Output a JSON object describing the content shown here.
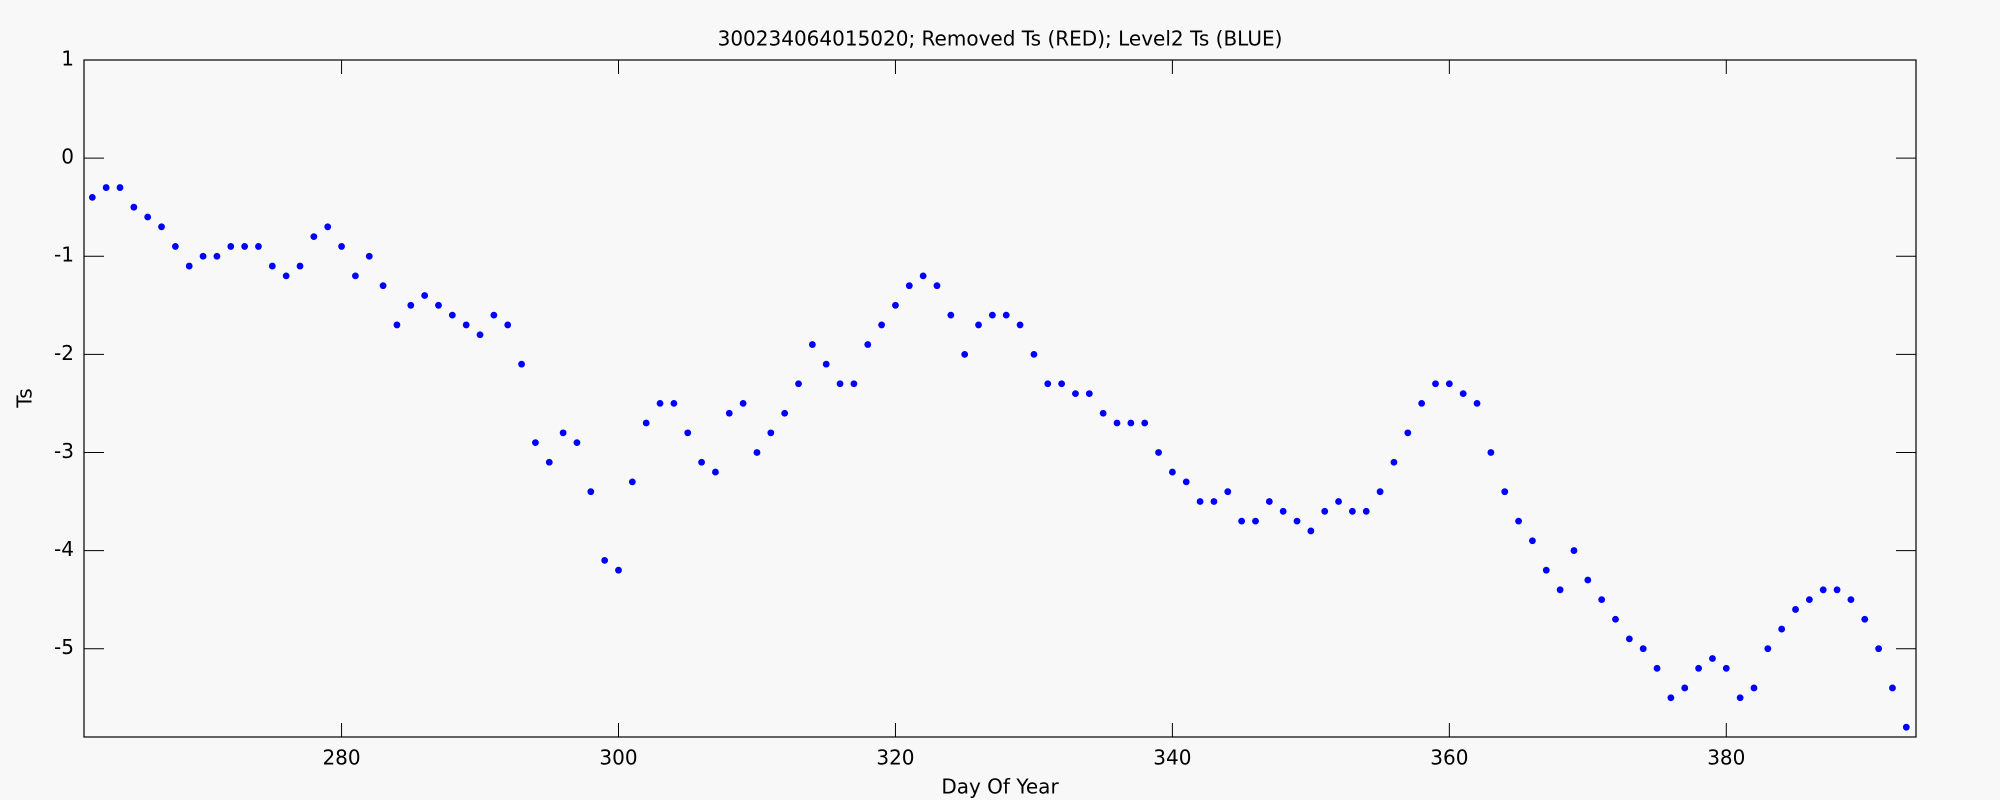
{
  "chart_data": {
    "type": "scatter",
    "title": "300234064015020; Removed Ts (RED); Level2 Ts (BLUE)",
    "x_label": "Day Of Year",
    "y_label": "Ts",
    "xlim": [
      261.4,
      393.7
    ],
    "ylim": [
      -5.9,
      1
    ],
    "xticks": [
      280,
      300,
      320,
      340,
      360,
      380
    ],
    "yticks": [
      1,
      0,
      -1,
      -2,
      -3,
      -4,
      -5
    ],
    "grid": false,
    "series": [
      {
        "name": "Level2 Ts",
        "color": "#0000ff",
        "x": [
          262,
          263,
          264,
          265,
          266,
          267,
          268,
          269,
          270,
          271,
          272,
          273,
          274,
          275,
          276,
          277,
          278,
          279,
          280,
          281,
          282,
          283,
          284,
          285,
          286,
          287,
          288,
          289,
          290,
          291,
          292,
          293,
          294,
          295,
          296,
          297,
          298,
          299,
          300,
          301,
          302,
          303,
          304,
          305,
          306,
          307,
          308,
          309,
          310,
          311,
          312,
          313,
          314,
          315,
          316,
          317,
          318,
          319,
          320,
          321,
          322,
          323,
          324,
          325,
          326,
          327,
          328,
          329,
          330,
          331,
          332,
          333,
          334,
          335,
          336,
          337,
          338,
          339,
          340,
          341,
          342,
          343,
          344,
          345,
          346,
          347,
          348,
          349,
          350,
          351,
          352,
          353,
          354,
          355,
          356,
          357,
          358,
          359,
          360,
          361,
          362,
          363,
          364,
          365,
          366,
          367,
          368,
          369,
          370,
          371,
          372,
          373,
          374,
          375,
          376,
          377,
          378,
          379,
          380,
          381,
          382,
          383,
          384,
          385,
          386,
          387,
          388,
          389,
          390,
          391,
          392,
          393
        ],
        "values": [
          -0.4,
          -0.3,
          -0.3,
          -0.5,
          -0.6,
          -0.7,
          -0.9,
          -1.1,
          -1.0,
          -1.0,
          -0.9,
          -0.9,
          -0.9,
          -1.1,
          -1.2,
          -1.1,
          -0.8,
          -0.7,
          -0.9,
          -1.2,
          -1.0,
          -1.3,
          -1.7,
          -1.5,
          -1.4,
          -1.5,
          -1.6,
          -1.7,
          -1.8,
          -1.6,
          -1.7,
          -2.1,
          -2.9,
          -3.1,
          -2.8,
          -2.9,
          -3.4,
          -4.1,
          -4.2,
          -3.3,
          -2.7,
          -2.5,
          -2.5,
          -2.8,
          -3.1,
          -3.2,
          -2.6,
          -2.5,
          -3.0,
          -2.8,
          -2.6,
          -2.3,
          -1.9,
          -2.1,
          -2.3,
          -2.3,
          -1.9,
          -1.7,
          -1.5,
          -1.3,
          -1.2,
          -1.3,
          -1.6,
          -2.0,
          -1.7,
          -1.6,
          -1.6,
          -1.7,
          -2.0,
          -2.3,
          -2.3,
          -2.4,
          -2.4,
          -2.6,
          -2.7,
          -2.7,
          -2.7,
          -3.0,
          -3.2,
          -3.3,
          -3.5,
          -3.5,
          -3.4,
          -3.7,
          -3.7,
          -3.5,
          -3.6,
          -3.7,
          -3.8,
          -3.6,
          -3.5,
          -3.6,
          -3.6,
          -3.4,
          -3.1,
          -2.8,
          -2.5,
          -2.3,
          -2.3,
          -2.4,
          -2.5,
          -3.0,
          -3.4,
          -3.7,
          -3.9,
          -4.2,
          -4.4,
          -4.0,
          -4.3,
          -4.5,
          -4.7,
          -4.9,
          -5.0,
          -5.2,
          -5.5,
          -5.4,
          -5.2,
          -5.1,
          -5.2,
          -5.5,
          -5.4,
          -5.0,
          -4.8,
          -4.6,
          -4.5,
          -4.4,
          -4.4,
          -4.5,
          -4.7,
          -5.0,
          -5.4,
          -5.8
        ]
      }
    ]
  }
}
